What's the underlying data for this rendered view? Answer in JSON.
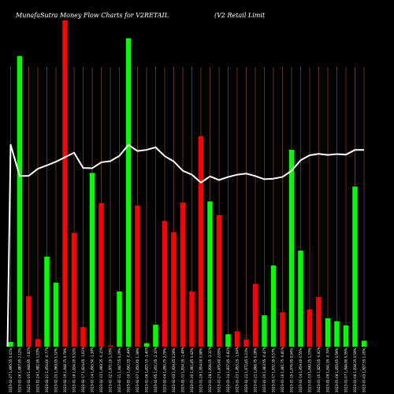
{
  "chart_data": {
    "type": "bar",
    "title": "MunafaSutra  Money Flow  Charts for V2RETAIL",
    "subtitle": "(V2  Retail Limit",
    "xlabel": "",
    "ylabel": "",
    "grid": true,
    "colors": {
      "background": "#000000",
      "up": "#00ff00",
      "down": "#ff0000",
      "line": "#ffffff",
      "grid": "#a0522d",
      "text": "#ffffff"
    },
    "categories": [
      "2023-02-27 1,895.55 0.41%",
      "2023-02-26 1,887.95 2.12%",
      "2023-02-25 1,848.65 -1.82%",
      "2023-02-24 1,882.95 1.53%",
      "2023-02-21 1,854.60 -0.77%",
      "2023-02-20 1,869.05 1.10%",
      "2023-02-19 1,848.75 0.79%",
      "2023-02-18 1,834.20 0.52%",
      "2023-02-17 1,824.65 -1.02%",
      "2023-02-14 1,843.50 -1.38%",
      "2023-02-13 1,869.35 -0.15%",
      "2023-02-12 1,872.20 1.33%",
      "2023-02-11 1,847.55 0.29%",
      "2023-02-10 1,842.25 -0.44%",
      "2023-02-07 1,850.40 1.38%",
      "2023-02-06 1,825.15 -1.40%",
      "2023-02-05 1,851.05 -2.10%",
      "2023-02-04 1,890.75 2.79%",
      "2023-02-03 1,839.45 0.28%",
      "2023-01-31 1,834.35 -1.48%",
      "2023-01-30 1,861.85 0.42%",
      "2023-01-29 1,854.00 0.98%",
      "2023-01-28 1,836.05 -2.11%",
      "2023-01-27 1,875.60 2.05%",
      "2023-01-24 1,837.95 -0.82%",
      "2023-01-23 1,853.15 -1.04%",
      "2023-01-22 1,872.65 0.21%",
      "2023-01-21 1,868.75 0.28%",
      "2023-01-20 1,863.55 -0.47%",
      "2023-01-17 1,872.35 0.57%",
      "2023-01-16 1,861.75 -0.81%",
      "2023-01-15 1,876.95 0.94%",
      "2023-01-14 1,859.40 0.55%",
      "2023-01-13 1,849.25 1.33%",
      "2023-01-10 1,825.05 -0.92%",
      "2023-01-09 1,841.95 -0.74%",
      "2023-01-08 1,855.65 0.59%",
      "2023-01-07 1,844.80 0.35%",
      "2023-01-06 1,838.35 0.59%",
      "2023-01-03 1,827.55 1.20%"
    ],
    "values": [
      0.8,
      49,
      8.5,
      1.3,
      15.2,
      10.8,
      55,
      19.2,
      3.3,
      29.3,
      24.2,
      0.2,
      9.3,
      52,
      23.8,
      0.6,
      3.7,
      21.2,
      19.3,
      24.3,
      9.3,
      35.5,
      24.5,
      22.2,
      2.1,
      2.6,
      1.2,
      10.6,
      5.3,
      13.7,
      5.8,
      33.2,
      16.2,
      6.3,
      8.4,
      4.8,
      4.3,
      3.6,
      27,
      1
    ],
    "directions": [
      "up",
      "up",
      "down",
      "down",
      "up",
      "up",
      "down",
      "down",
      "down",
      "up",
      "down",
      "down",
      "up",
      "up",
      "down",
      "up",
      "up",
      "down",
      "down",
      "down",
      "down",
      "down",
      "up",
      "down",
      "up",
      "down",
      "down",
      "down",
      "up",
      "up",
      "down",
      "up",
      "up",
      "down",
      "down",
      "up",
      "up",
      "up",
      "up",
      "up"
    ],
    "series": [
      {
        "values": [
          1861.6,
          1850.5,
          1850.6,
          1853.1,
          1854.3,
          1855.6,
          1857.2,
          1858.8,
          1853.4,
          1853.3,
          1855.4,
          1855.8,
          1857.7,
          1861.6,
          1859.4,
          1859.8,
          1860.7,
          1857.6,
          1855.7,
          1852.4,
          1851.0,
          1848.2,
          1850.4,
          1849.1,
          1850.2,
          1851.0,
          1851.4,
          1850.5,
          1849.4,
          1849.6,
          1850.2,
          1852.4,
          1856.1,
          1857.9,
          1858.4,
          1858.0,
          1858.3,
          1858.1,
          1859.8,
          1859.8
        ]
      }
    ],
    "ylim": [
      0,
      55
    ],
    "ylim_line": [
      1790,
      1885
    ]
  }
}
